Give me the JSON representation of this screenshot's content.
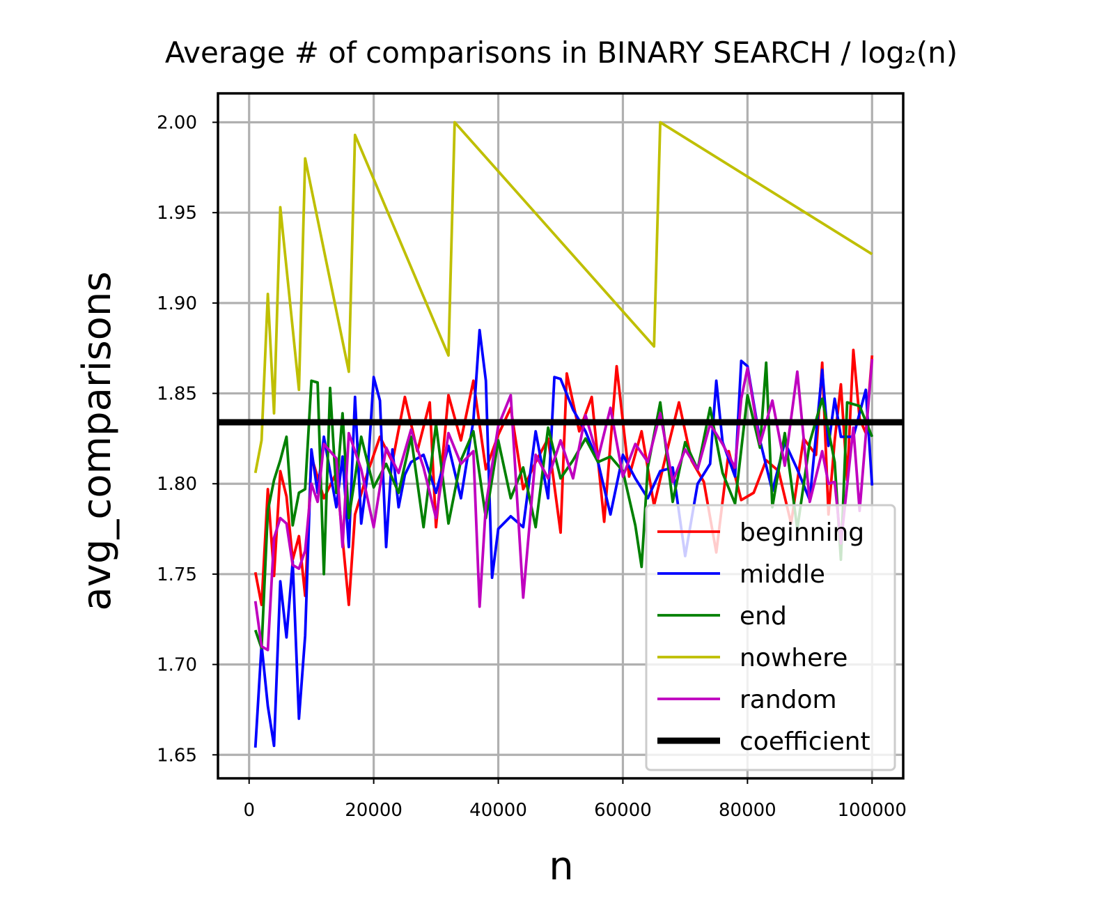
{
  "chart_data": {
    "type": "line",
    "title": "Average # of comparisons in BINARY SEARCH / log₂(n)",
    "xlabel": "n",
    "ylabel": "avg_comparisons",
    "xlim": [
      -5000,
      105000
    ],
    "ylim": [
      1.637,
      2.016
    ],
    "xticks": [
      0,
      20000,
      40000,
      60000,
      80000,
      100000
    ],
    "yticks": [
      1.65,
      1.7,
      1.75,
      1.8,
      1.85,
      1.9,
      1.95,
      2.0
    ],
    "ytick_labels": [
      "1.65",
      "1.70",
      "1.75",
      "1.80",
      "1.85",
      "1.90",
      "1.95",
      "2.00"
    ],
    "grid": true,
    "legend_position": "lower-right",
    "series": [
      {
        "name": "beginning",
        "color": "#ff0000",
        "x": [
          1000,
          2000,
          3000,
          4000,
          5000,
          6000,
          7000,
          8000,
          9000,
          10000,
          12000,
          14000,
          16000,
          17000,
          19000,
          21000,
          23000,
          25000,
          27000,
          29000,
          30000,
          32000,
          34000,
          36000,
          38000,
          40000,
          42000,
          44000,
          46000,
          48000,
          50000,
          51000,
          53000,
          55000,
          57000,
          59000,
          61000,
          63000,
          65000,
          67000,
          69000,
          71000,
          73000,
          75000,
          77000,
          79000,
          81000,
          83000,
          85000,
          87000,
          89000,
          91000,
          92000,
          93000,
          94000,
          95000,
          96000,
          97000,
          98000,
          99000,
          100000
        ],
        "y": [
          1.751,
          1.733,
          1.797,
          1.749,
          1.807,
          1.793,
          1.758,
          1.771,
          1.738,
          1.815,
          1.792,
          1.806,
          1.733,
          1.783,
          1.806,
          1.826,
          1.812,
          1.848,
          1.818,
          1.845,
          1.776,
          1.849,
          1.824,
          1.857,
          1.808,
          1.827,
          1.842,
          1.797,
          1.812,
          1.825,
          1.773,
          1.861,
          1.829,
          1.848,
          1.779,
          1.865,
          1.804,
          1.829,
          1.788,
          1.817,
          1.845,
          1.813,
          1.801,
          1.762,
          1.818,
          1.791,
          1.795,
          1.813,
          1.807,
          1.778,
          1.825,
          1.816,
          1.867,
          1.783,
          1.824,
          1.855,
          1.802,
          1.874,
          1.836,
          1.828,
          1.871
        ]
      },
      {
        "name": "middle",
        "color": "#0000ff",
        "x": [
          1000,
          2000,
          3000,
          4000,
          5000,
          6000,
          7000,
          8000,
          9000,
          10000,
          11000,
          12000,
          14000,
          15000,
          16000,
          17000,
          18000,
          19000,
          20000,
          21000,
          22000,
          23000,
          24000,
          25000,
          26000,
          28000,
          30000,
          32000,
          34000,
          36000,
          37000,
          38000,
          39000,
          40000,
          42000,
          44000,
          46000,
          48000,
          49000,
          50000,
          52000,
          54000,
          56000,
          58000,
          60000,
          62000,
          64000,
          66000,
          68000,
          70000,
          72000,
          74000,
          75000,
          76000,
          78000,
          79000,
          80000,
          82000,
          84000,
          86000,
          88000,
          90000,
          92000,
          93000,
          94000,
          95000,
          97000,
          99000,
          100000
        ],
        "y": [
          1.654,
          1.711,
          1.677,
          1.655,
          1.746,
          1.715,
          1.757,
          1.67,
          1.716,
          1.819,
          1.795,
          1.826,
          1.787,
          1.815,
          1.765,
          1.848,
          1.778,
          1.805,
          1.859,
          1.846,
          1.765,
          1.819,
          1.787,
          1.805,
          1.812,
          1.816,
          1.795,
          1.821,
          1.792,
          1.835,
          1.885,
          1.857,
          1.748,
          1.775,
          1.782,
          1.776,
          1.829,
          1.792,
          1.859,
          1.858,
          1.841,
          1.829,
          1.812,
          1.783,
          1.816,
          1.803,
          1.792,
          1.807,
          1.809,
          1.76,
          1.8,
          1.811,
          1.857,
          1.823,
          1.804,
          1.868,
          1.865,
          1.824,
          1.796,
          1.823,
          1.808,
          1.791,
          1.863,
          1.821,
          1.847,
          1.826,
          1.826,
          1.852,
          1.799
        ]
      },
      {
        "name": "end",
        "color": "#008000",
        "x": [
          1000,
          2000,
          3000,
          4000,
          5000,
          6000,
          7000,
          8000,
          9000,
          10000,
          11000,
          12000,
          13000,
          14000,
          15000,
          16000,
          18000,
          20000,
          22000,
          24000,
          26000,
          28000,
          30000,
          32000,
          34000,
          36000,
          38000,
          40000,
          42000,
          44000,
          46000,
          48000,
          50000,
          52000,
          54000,
          56000,
          58000,
          60000,
          62000,
          63000,
          64000,
          66000,
          68000,
          70000,
          72000,
          74000,
          76000,
          78000,
          80000,
          82000,
          83000,
          84000,
          86000,
          88000,
          90000,
          92000,
          94000,
          95000,
          96000,
          98000,
          100000
        ],
        "y": [
          1.719,
          1.709,
          1.785,
          1.802,
          1.813,
          1.826,
          1.777,
          1.795,
          1.797,
          1.857,
          1.856,
          1.75,
          1.853,
          1.795,
          1.839,
          1.781,
          1.826,
          1.798,
          1.811,
          1.795,
          1.826,
          1.776,
          1.833,
          1.778,
          1.813,
          1.829,
          1.781,
          1.824,
          1.792,
          1.809,
          1.776,
          1.831,
          1.803,
          1.813,
          1.825,
          1.812,
          1.815,
          1.807,
          1.777,
          1.754,
          1.809,
          1.845,
          1.79,
          1.823,
          1.808,
          1.842,
          1.806,
          1.789,
          1.849,
          1.82,
          1.867,
          1.787,
          1.828,
          1.775,
          1.823,
          1.847,
          1.812,
          1.758,
          1.845,
          1.843,
          1.826
        ]
      },
      {
        "name": "nowhere",
        "color": "#bfbf00",
        "x": [
          1000,
          2000,
          3000,
          4000,
          5000,
          8000,
          9000,
          16000,
          17000,
          32000,
          33000,
          65000,
          66000,
          100000
        ],
        "y": [
          1.806,
          1.824,
          1.905,
          1.839,
          1.953,
          1.852,
          1.98,
          1.862,
          1.993,
          1.871,
          2.0,
          1.876,
          2.0,
          1.927
        ]
      },
      {
        "name": "random",
        "color": "#bf00bf",
        "x": [
          1000,
          2000,
          3000,
          4000,
          5000,
          6000,
          7000,
          8000,
          9000,
          10000,
          11000,
          12000,
          14000,
          15000,
          16000,
          18000,
          20000,
          22000,
          24000,
          26000,
          28000,
          30000,
          32000,
          34000,
          36000,
          37000,
          38000,
          40000,
          42000,
          44000,
          46000,
          48000,
          50000,
          52000,
          54000,
          56000,
          58000,
          60000,
          62000,
          64000,
          66000,
          68000,
          70000,
          72000,
          74000,
          76000,
          78000,
          79000,
          80000,
          82000,
          84000,
          86000,
          88000,
          90000,
          92000,
          93000,
          94000,
          95000,
          97000,
          98000,
          100000
        ],
        "y": [
          1.735,
          1.71,
          1.708,
          1.77,
          1.781,
          1.778,
          1.755,
          1.753,
          1.763,
          1.8,
          1.79,
          1.822,
          1.814,
          1.765,
          1.828,
          1.808,
          1.776,
          1.82,
          1.806,
          1.83,
          1.809,
          1.781,
          1.828,
          1.811,
          1.818,
          1.732,
          1.788,
          1.832,
          1.849,
          1.737,
          1.816,
          1.803,
          1.824,
          1.803,
          1.838,
          1.814,
          1.842,
          1.804,
          1.822,
          1.812,
          1.839,
          1.801,
          1.819,
          1.808,
          1.833,
          1.822,
          1.809,
          1.847,
          1.864,
          1.822,
          1.846,
          1.81,
          1.862,
          1.79,
          1.818,
          1.8,
          1.801,
          1.767,
          1.831,
          1.785,
          1.869
        ]
      },
      {
        "name": "coefficient",
        "color": "#000000",
        "hline": 1.834
      }
    ]
  }
}
